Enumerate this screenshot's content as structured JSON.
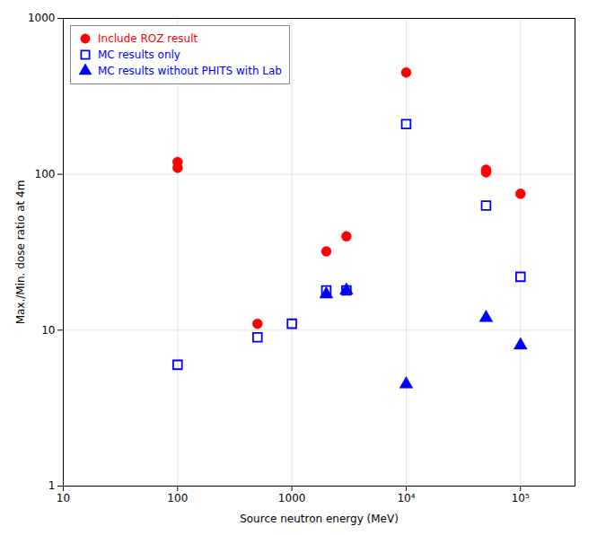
{
  "chart_data": {
    "type": "scatter",
    "xlabel": "Source neutron energy (MeV)",
    "ylabel": "Max./Min. dose ratio at 4m",
    "log": true,
    "xlim": [
      10,
      300000
    ],
    "ylim": [
      1,
      1000
    ],
    "xticks": [
      10,
      100,
      1000,
      {
        "value": 10000,
        "label": "10⁴"
      },
      {
        "value": 100000,
        "label": "10⁵"
      }
    ],
    "yticks": [
      1,
      10,
      100,
      1000
    ],
    "grid": true,
    "legend": "upper left",
    "series": [
      {
        "name": "Include ROZ result",
        "color": "red",
        "marker": "circle",
        "x": [
          100,
          100,
          500,
          2000,
          3000,
          10000,
          50000,
          50000,
          100000
        ],
        "values": [
          110,
          120,
          11,
          32,
          40,
          450,
          107,
          103,
          75
        ]
      },
      {
        "name": "MC results only",
        "color": "blue",
        "marker": "open-square",
        "x": [
          100,
          500,
          1000,
          2000,
          3000,
          10000,
          50000,
          100000
        ],
        "values": [
          6,
          9,
          11,
          18,
          18,
          210,
          63,
          22
        ]
      },
      {
        "name": "MC results without PHITS with Lab",
        "color": "blue",
        "marker": "triangle",
        "x": [
          2000,
          3000,
          10000,
          50000,
          100000
        ],
        "values": [
          17,
          18,
          4.5,
          12,
          8
        ]
      }
    ]
  }
}
